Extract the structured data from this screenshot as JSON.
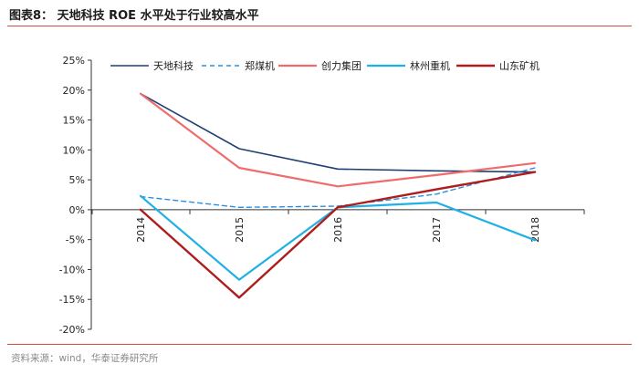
{
  "header": {
    "title": "图表8：  天地科技 ROE 水平处于行业较高水平"
  },
  "footer": {
    "source": "资料来源：wind，华泰证券研究所"
  },
  "colors": {
    "accent_rule": "#d94b3f"
  },
  "chart_data": {
    "type": "line",
    "title": "",
    "xlabel": "",
    "ylabel": "",
    "x": [
      "2014",
      "2015",
      "2016",
      "2017",
      "2018"
    ],
    "ylim": [
      -20,
      25
    ],
    "yticks": [
      25,
      20,
      15,
      10,
      5,
      0,
      -5,
      -10,
      -15,
      -20
    ],
    "ytick_labels": [
      "25%",
      "20%",
      "15%",
      "10%",
      "5%",
      "0%",
      "-5%",
      "-10%",
      "-15%",
      "-20%"
    ],
    "grid": false,
    "legend_position": "top",
    "series": [
      {
        "name": "天地科技",
        "color": "#1f3f73",
        "dash": "solid",
        "width": 1.6,
        "values": [
          19.4,
          10.2,
          6.8,
          6.5,
          6.3
        ]
      },
      {
        "name": "郑煤机",
        "color": "#2a8fe0",
        "dash": "dashed",
        "width": 1.4,
        "values": [
          2.2,
          0.4,
          0.6,
          2.6,
          7.0
        ]
      },
      {
        "name": "创力集团",
        "color": "#f06c6c",
        "dash": "solid",
        "width": 2.2,
        "values": [
          19.4,
          7.0,
          3.9,
          5.8,
          7.8
        ]
      },
      {
        "name": "林州重机",
        "color": "#1fb0e6",
        "dash": "solid",
        "width": 2.2,
        "values": [
          2.3,
          -11.7,
          0.4,
          1.2,
          -5.1
        ]
      },
      {
        "name": "山东矿机",
        "color": "#b01c1c",
        "dash": "solid",
        "width": 2.4,
        "values": [
          0.0,
          -14.7,
          0.4,
          3.4,
          6.3
        ]
      }
    ]
  }
}
